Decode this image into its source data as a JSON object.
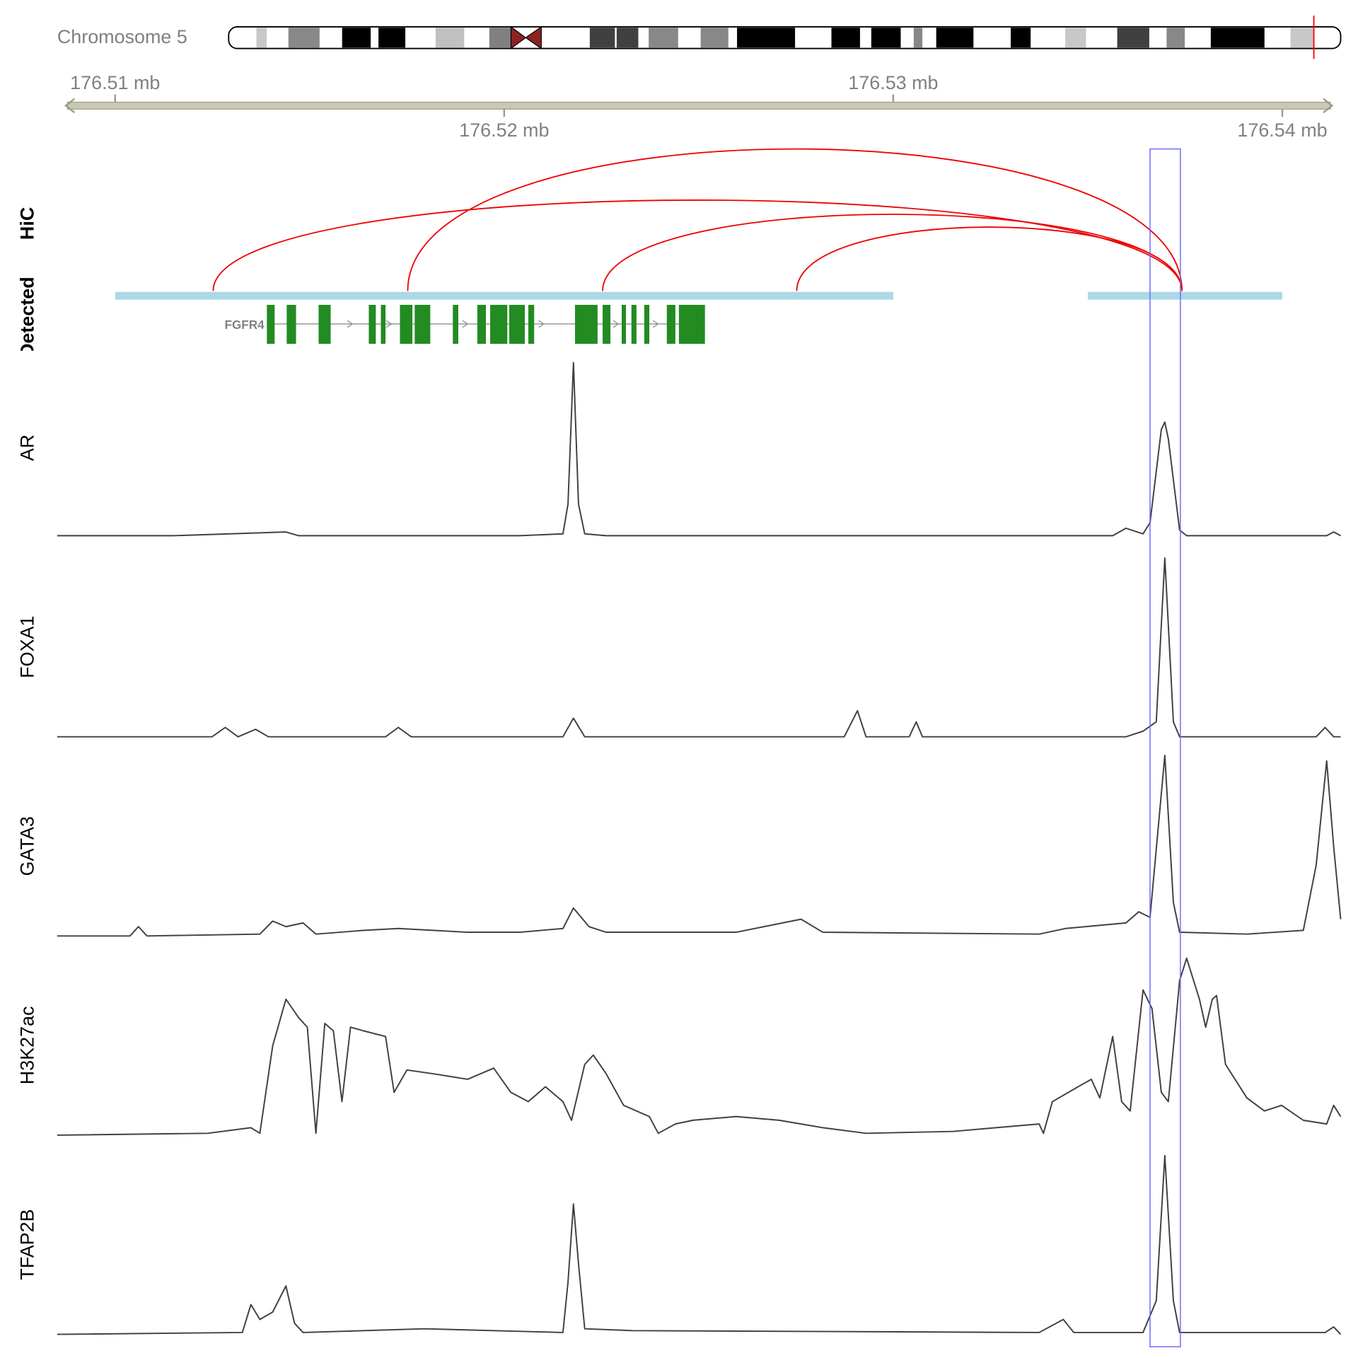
{
  "chart_data": {
    "type": "genome-tracks",
    "ideogram_label": "Chromosome 5",
    "xlim": [
      176.50851,
      176.5415
    ],
    "xticks": [
      {
        "value": 176.51,
        "label": "176.51 mb"
      },
      {
        "value": 176.52,
        "label": "176.52 mb"
      },
      {
        "value": 176.53,
        "label": "176.53 mb"
      },
      {
        "value": 176.54,
        "label": "176.54 mb"
      }
    ],
    "highlight": [
      176.5366,
      176.53738
    ],
    "hic": {
      "label": "HiC",
      "color": "#ee0000",
      "ylim": [
        0,
        100
      ],
      "links": [
        {
          "start": 176.51252,
          "end": 176.53742,
          "value": 64
        },
        {
          "start": 176.51752,
          "end": 176.53742,
          "value": 100
        },
        {
          "start": 176.52253,
          "end": 176.53742,
          "value": 54
        },
        {
          "start": 176.52752,
          "end": 176.53742,
          "value": 45
        }
      ]
    },
    "detected": {
      "label": "Detected",
      "color": "#add8e6",
      "intervals": [
        [
          176.51,
          176.53
        ],
        [
          176.535,
          176.54
        ]
      ]
    },
    "gene": {
      "name": "FGFR4",
      "color": "#228b22",
      "exons": [
        [
          176.5139,
          176.5141
        ],
        [
          176.51441,
          176.51465
        ],
        [
          176.51523,
          176.51554
        ],
        [
          176.51652,
          176.5167
        ],
        [
          176.51683,
          176.51695
        ],
        [
          176.51732,
          176.51764
        ],
        [
          176.5177,
          176.5181
        ],
        [
          176.51868,
          176.51882
        ],
        [
          176.51931,
          176.51953
        ],
        [
          176.51964,
          176.52008
        ],
        [
          176.52013,
          176.52053
        ],
        [
          176.52062,
          176.52077
        ],
        [
          176.52182,
          176.5224
        ],
        [
          176.52253,
          176.52273
        ],
        [
          176.52302,
          176.52313
        ],
        [
          176.52327,
          176.5234
        ],
        [
          176.5236,
          176.52373
        ],
        [
          176.52418,
          176.5244
        ],
        [
          176.52449,
          176.52516
        ]
      ]
    },
    "ylim": [
      0,
      100
    ],
    "series": [
      {
        "name": "AR",
        "color": "#404040",
        "x": [
          176.50851,
          176.51149,
          176.51439,
          176.51472,
          176.5204,
          176.52151,
          176.52164,
          176.52178,
          176.52191,
          176.52207,
          176.52262,
          176.53564,
          176.53598,
          176.53642,
          176.5366,
          176.53689,
          176.53698,
          176.53707,
          176.53736,
          176.53754,
          176.54114,
          176.54132,
          176.5415
        ],
        "values": [
          3,
          3,
          5,
          3,
          3,
          4,
          20,
          96,
          20,
          4,
          3,
          3,
          7,
          4,
          10,
          60,
          64,
          55,
          6,
          3,
          3,
          5,
          3
        ]
      },
      {
        "name": "FOXA1",
        "color": "#404040",
        "x": [
          176.50851,
          176.51249,
          176.51283,
          176.51316,
          176.51361,
          176.51394,
          176.51695,
          176.51728,
          176.51761,
          176.52151,
          176.52178,
          176.52207,
          176.52874,
          176.52908,
          176.5293,
          176.53041,
          176.53059,
          176.53075,
          176.53598,
          176.53642,
          176.53676,
          176.53698,
          176.5372,
          176.53736,
          176.54087,
          176.5411,
          176.54132,
          176.5415
        ],
        "values": [
          2,
          2,
          7,
          2,
          6,
          2,
          2,
          7,
          2,
          2,
          12,
          2,
          2,
          16,
          2,
          2,
          10,
          2,
          2,
          5,
          10,
          98,
          10,
          2,
          2,
          7,
          2,
          2
        ]
      },
      {
        "name": "GATA3",
        "color": "#404040",
        "x": [
          176.50851,
          176.51038,
          176.5106,
          176.51082,
          176.51372,
          176.51405,
          176.51439,
          176.51483,
          176.51516,
          176.51639,
          176.51728,
          176.51817,
          176.51906,
          176.5204,
          176.52151,
          176.52178,
          176.52218,
          176.52262,
          176.52596,
          176.52763,
          176.52819,
          176.53375,
          176.53442,
          176.53598,
          176.53631,
          176.5366,
          176.53698,
          176.5372,
          176.53736,
          176.53909,
          176.54054,
          176.54087,
          176.54114,
          176.54132,
          176.5415
        ],
        "values": [
          2,
          2,
          7,
          2,
          3,
          10,
          7,
          9,
          3,
          5,
          6,
          5,
          4,
          4,
          6,
          17,
          7,
          4,
          4,
          11,
          4,
          3,
          6,
          9,
          15,
          12,
          99,
          20,
          4,
          3,
          5,
          40,
          96,
          50,
          11
        ]
      },
      {
        "name": "H3K27ac",
        "color": "#404040",
        "x": [
          176.50851,
          176.51238,
          176.51349,
          176.51372,
          176.51405,
          176.51439,
          176.51472,
          176.51494,
          176.51516,
          176.51539,
          176.51561,
          176.51583,
          176.51605,
          176.51639,
          176.51695,
          176.51717,
          176.5175,
          176.51817,
          176.51906,
          176.51973,
          176.52017,
          176.52062,
          176.52106,
          176.52151,
          176.52173,
          176.52207,
          176.52229,
          176.52262,
          176.52307,
          176.52373,
          176.52396,
          176.5244,
          176.52485,
          176.52596,
          176.52707,
          176.52819,
          176.5293,
          176.53153,
          176.53264,
          176.53375,
          176.53386,
          176.53409,
          176.53475,
          176.53509,
          176.53531,
          176.53564,
          176.53587,
          176.53609,
          176.53642,
          176.53665,
          176.53689,
          176.53707,
          176.53736,
          176.53754,
          176.53787,
          176.53803,
          176.5382,
          176.53831,
          176.53854,
          176.53909,
          176.53954,
          176.53998,
          176.54054,
          176.54114,
          176.54132,
          176.5415
        ],
        "values": [
          2,
          3,
          6,
          3,
          50,
          75,
          65,
          60,
          3,
          62,
          58,
          20,
          60,
          58,
          55,
          25,
          37,
          35,
          32,
          38,
          25,
          20,
          28,
          20,
          10,
          40,
          45,
          35,
          18,
          12,
          3,
          8,
          10,
          12,
          10,
          6,
          3,
          4,
          6,
          8,
          3,
          20,
          28,
          32,
          22,
          55,
          20,
          15,
          80,
          70,
          25,
          20,
          85,
          97,
          75,
          60,
          75,
          77,
          40,
          22,
          15,
          18,
          10,
          8,
          18,
          12
        ]
      },
      {
        "name": "TFAP2B",
        "color": "#404040",
        "x": [
          176.50851,
          176.51327,
          176.51349,
          176.51372,
          176.51405,
          176.51439,
          176.51461,
          176.51483,
          176.51795,
          176.52151,
          176.52164,
          176.52178,
          176.52191,
          176.52207,
          176.52329,
          176.53375,
          176.53437,
          176.53464,
          176.53642,
          176.53676,
          176.53698,
          176.5372,
          176.53736,
          176.5411,
          176.54132,
          176.5415
        ],
        "values": [
          2,
          3,
          18,
          10,
          14,
          28,
          8,
          3,
          5,
          3,
          30,
          72,
          40,
          5,
          4,
          3,
          10,
          3,
          3,
          20,
          98,
          20,
          3,
          3,
          6,
          2
        ]
      }
    ]
  }
}
